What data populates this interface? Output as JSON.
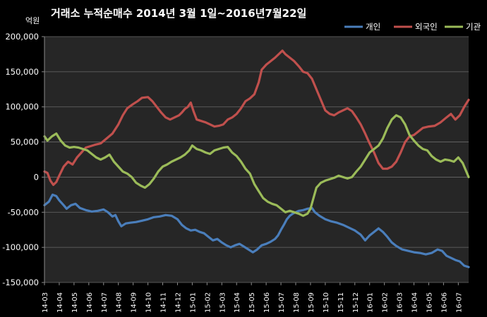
{
  "chart_data": {
    "type": "line",
    "title": "거래소  누적순매수 2014년 3월 1일~2016년7월22일",
    "unit_label": "억원",
    "ylim": [
      -150000,
      200000
    ],
    "y_ticks": [
      200000,
      150000,
      100000,
      50000,
      0,
      -50000,
      -100000,
      -150000
    ],
    "y_tick_labels": [
      "200,000",
      "150,000",
      "100,000",
      "50,000",
      "0",
      "-50,000",
      "-100,000",
      "-150,000"
    ],
    "x_labels": [
      "14-03",
      "14-04",
      "14-05",
      "14-06",
      "14-07",
      "14-08",
      "14-09",
      "14-10",
      "14-11",
      "14-12",
      "15-01",
      "15-02",
      "15-03",
      "15-04",
      "15-05",
      "15-06",
      "15-07",
      "15-08",
      "15-09",
      "15-10",
      "15-11",
      "15-12",
      "16-01",
      "16-02",
      "16-03",
      "16-04",
      "16-05",
      "16-06",
      "16-07"
    ],
    "x_range": [
      0,
      28.7
    ],
    "grid": true,
    "legend_position": "top-right",
    "series": [
      {
        "name": "개인",
        "color": "#4a7ebb",
        "points": [
          [
            0,
            -40000
          ],
          [
            0.3,
            -35000
          ],
          [
            0.55,
            -25000
          ],
          [
            0.8,
            -27000
          ],
          [
            1.0,
            -33000
          ],
          [
            1.3,
            -40000
          ],
          [
            1.5,
            -45000
          ],
          [
            1.8,
            -40000
          ],
          [
            2.1,
            -38000
          ],
          [
            2.4,
            -44000
          ],
          [
            2.8,
            -47000
          ],
          [
            3.2,
            -49000
          ],
          [
            3.6,
            -48000
          ],
          [
            4.0,
            -46000
          ],
          [
            4.3,
            -50000
          ],
          [
            4.6,
            -56000
          ],
          [
            4.8,
            -54000
          ],
          [
            5.0,
            -63000
          ],
          [
            5.2,
            -70000
          ],
          [
            5.5,
            -66000
          ],
          [
            5.8,
            -65000
          ],
          [
            6.2,
            -64000
          ],
          [
            6.6,
            -62000
          ],
          [
            7.0,
            -60000
          ],
          [
            7.4,
            -57000
          ],
          [
            7.8,
            -56000
          ],
          [
            8.2,
            -54000
          ],
          [
            8.6,
            -55000
          ],
          [
            9.0,
            -60000
          ],
          [
            9.3,
            -68000
          ],
          [
            9.6,
            -73000
          ],
          [
            9.9,
            -76000
          ],
          [
            10.2,
            -75000
          ],
          [
            10.5,
            -78000
          ],
          [
            10.8,
            -80000
          ],
          [
            11.1,
            -85000
          ],
          [
            11.4,
            -90000
          ],
          [
            11.7,
            -88000
          ],
          [
            12.0,
            -93000
          ],
          [
            12.3,
            -97000
          ],
          [
            12.6,
            -100000
          ],
          [
            12.9,
            -97000
          ],
          [
            13.2,
            -95000
          ],
          [
            13.5,
            -99000
          ],
          [
            13.8,
            -103000
          ],
          [
            14.1,
            -107000
          ],
          [
            14.4,
            -103000
          ],
          [
            14.7,
            -97000
          ],
          [
            15.0,
            -95000
          ],
          [
            15.3,
            -92000
          ],
          [
            15.6,
            -88000
          ],
          [
            15.8,
            -83000
          ],
          [
            16.0,
            -75000
          ],
          [
            16.2,
            -68000
          ],
          [
            16.4,
            -60000
          ],
          [
            16.6,
            -55000
          ],
          [
            16.8,
            -52000
          ],
          [
            17.0,
            -50000
          ],
          [
            17.2,
            -48000
          ],
          [
            17.5,
            -47000
          ],
          [
            17.8,
            -45000
          ],
          [
            18.1,
            -44000
          ],
          [
            18.3,
            -50000
          ],
          [
            18.6,
            -55000
          ],
          [
            19.0,
            -60000
          ],
          [
            19.4,
            -63000
          ],
          [
            19.8,
            -65000
          ],
          [
            20.2,
            -68000
          ],
          [
            20.6,
            -72000
          ],
          [
            21.0,
            -76000
          ],
          [
            21.4,
            -82000
          ],
          [
            21.7,
            -90000
          ],
          [
            22.0,
            -83000
          ],
          [
            22.3,
            -78000
          ],
          [
            22.6,
            -73000
          ],
          [
            22.9,
            -78000
          ],
          [
            23.2,
            -85000
          ],
          [
            23.5,
            -93000
          ],
          [
            23.8,
            -98000
          ],
          [
            24.2,
            -103000
          ],
          [
            24.6,
            -105000
          ],
          [
            25.0,
            -107000
          ],
          [
            25.4,
            -108000
          ],
          [
            25.8,
            -110000
          ],
          [
            26.2,
            -108000
          ],
          [
            26.6,
            -103000
          ],
          [
            26.9,
            -105000
          ],
          [
            27.2,
            -112000
          ],
          [
            27.5,
            -115000
          ],
          [
            27.8,
            -118000
          ],
          [
            28.1,
            -120000
          ],
          [
            28.4,
            -126000
          ],
          [
            28.7,
            -128000
          ]
        ]
      },
      {
        "name": "외국인",
        "color": "#c0504d",
        "points": [
          [
            0,
            8000
          ],
          [
            0.2,
            6000
          ],
          [
            0.4,
            -5000
          ],
          [
            0.6,
            -11000
          ],
          [
            0.8,
            -7000
          ],
          [
            1.0,
            2000
          ],
          [
            1.3,
            15000
          ],
          [
            1.6,
            22000
          ],
          [
            1.9,
            18000
          ],
          [
            2.2,
            28000
          ],
          [
            2.5,
            35000
          ],
          [
            2.8,
            42000
          ],
          [
            3.1,
            44000
          ],
          [
            3.4,
            46000
          ],
          [
            3.8,
            48000
          ],
          [
            4.2,
            55000
          ],
          [
            4.6,
            62000
          ],
          [
            5.0,
            75000
          ],
          [
            5.3,
            88000
          ],
          [
            5.6,
            98000
          ],
          [
            6.0,
            104000
          ],
          [
            6.3,
            108000
          ],
          [
            6.6,
            113000
          ],
          [
            7.0,
            114000
          ],
          [
            7.3,
            108000
          ],
          [
            7.6,
            100000
          ],
          [
            7.9,
            92000
          ],
          [
            8.2,
            85000
          ],
          [
            8.5,
            82000
          ],
          [
            8.8,
            85000
          ],
          [
            9.1,
            88000
          ],
          [
            9.3,
            92000
          ],
          [
            9.5,
            97000
          ],
          [
            9.7,
            100000
          ],
          [
            9.9,
            106000
          ],
          [
            10.1,
            93000
          ],
          [
            10.3,
            82000
          ],
          [
            10.6,
            80000
          ],
          [
            10.9,
            78000
          ],
          [
            11.2,
            75000
          ],
          [
            11.5,
            72000
          ],
          [
            11.8,
            73000
          ],
          [
            12.1,
            75000
          ],
          [
            12.4,
            82000
          ],
          [
            12.7,
            85000
          ],
          [
            13.0,
            90000
          ],
          [
            13.3,
            98000
          ],
          [
            13.6,
            108000
          ],
          [
            13.9,
            112000
          ],
          [
            14.2,
            118000
          ],
          [
            14.5,
            135000
          ],
          [
            14.7,
            153000
          ],
          [
            15.0,
            160000
          ],
          [
            15.3,
            165000
          ],
          [
            15.6,
            170000
          ],
          [
            15.9,
            176000
          ],
          [
            16.1,
            180000
          ],
          [
            16.3,
            175000
          ],
          [
            16.6,
            170000
          ],
          [
            16.9,
            165000
          ],
          [
            17.2,
            158000
          ],
          [
            17.5,
            150000
          ],
          [
            17.8,
            148000
          ],
          [
            18.1,
            140000
          ],
          [
            18.4,
            125000
          ],
          [
            18.7,
            110000
          ],
          [
            19.0,
            95000
          ],
          [
            19.3,
            90000
          ],
          [
            19.6,
            88000
          ],
          [
            19.9,
            92000
          ],
          [
            20.2,
            95000
          ],
          [
            20.5,
            98000
          ],
          [
            20.8,
            94000
          ],
          [
            21.1,
            85000
          ],
          [
            21.4,
            75000
          ],
          [
            21.7,
            62000
          ],
          [
            22.0,
            48000
          ],
          [
            22.3,
            35000
          ],
          [
            22.6,
            20000
          ],
          [
            22.9,
            12000
          ],
          [
            23.2,
            12000
          ],
          [
            23.5,
            15000
          ],
          [
            23.8,
            22000
          ],
          [
            24.1,
            35000
          ],
          [
            24.4,
            50000
          ],
          [
            24.7,
            58000
          ],
          [
            25.0,
            60000
          ],
          [
            25.3,
            65000
          ],
          [
            25.6,
            70000
          ],
          [
            26.0,
            72000
          ],
          [
            26.4,
            73000
          ],
          [
            26.8,
            78000
          ],
          [
            27.2,
            85000
          ],
          [
            27.5,
            90000
          ],
          [
            27.8,
            82000
          ],
          [
            28.1,
            88000
          ],
          [
            28.4,
            100000
          ],
          [
            28.7,
            110000
          ]
        ]
      },
      {
        "name": "기관",
        "color": "#9bbb59",
        "points": [
          [
            0,
            58000
          ],
          [
            0.2,
            52000
          ],
          [
            0.5,
            58000
          ],
          [
            0.8,
            62000
          ],
          [
            1.1,
            52000
          ],
          [
            1.4,
            45000
          ],
          [
            1.7,
            42000
          ],
          [
            2.0,
            43000
          ],
          [
            2.3,
            42000
          ],
          [
            2.6,
            40000
          ],
          [
            2.9,
            38000
          ],
          [
            3.2,
            33000
          ],
          [
            3.5,
            28000
          ],
          [
            3.8,
            25000
          ],
          [
            4.1,
            28000
          ],
          [
            4.4,
            32000
          ],
          [
            4.7,
            22000
          ],
          [
            5.0,
            15000
          ],
          [
            5.3,
            8000
          ],
          [
            5.6,
            5000
          ],
          [
            5.9,
            0
          ],
          [
            6.2,
            -8000
          ],
          [
            6.5,
            -12000
          ],
          [
            6.8,
            -15000
          ],
          [
            7.1,
            -10000
          ],
          [
            7.4,
            -2000
          ],
          [
            7.7,
            8000
          ],
          [
            8.0,
            15000
          ],
          [
            8.3,
            18000
          ],
          [
            8.6,
            22000
          ],
          [
            8.9,
            25000
          ],
          [
            9.2,
            28000
          ],
          [
            9.5,
            32000
          ],
          [
            9.8,
            38000
          ],
          [
            10.0,
            45000
          ],
          [
            10.3,
            40000
          ],
          [
            10.6,
            38000
          ],
          [
            10.9,
            35000
          ],
          [
            11.2,
            33000
          ],
          [
            11.5,
            38000
          ],
          [
            11.8,
            40000
          ],
          [
            12.1,
            42000
          ],
          [
            12.4,
            43000
          ],
          [
            12.7,
            35000
          ],
          [
            13.0,
            30000
          ],
          [
            13.3,
            22000
          ],
          [
            13.6,
            12000
          ],
          [
            13.9,
            5000
          ],
          [
            14.2,
            -10000
          ],
          [
            14.5,
            -20000
          ],
          [
            14.8,
            -30000
          ],
          [
            15.1,
            -35000
          ],
          [
            15.4,
            -38000
          ],
          [
            15.7,
            -40000
          ],
          [
            16.0,
            -45000
          ],
          [
            16.3,
            -50000
          ],
          [
            16.6,
            -48000
          ],
          [
            16.9,
            -50000
          ],
          [
            17.2,
            -52000
          ],
          [
            17.5,
            -55000
          ],
          [
            17.8,
            -52000
          ],
          [
            18.0,
            -45000
          ],
          [
            18.2,
            -30000
          ],
          [
            18.4,
            -15000
          ],
          [
            18.7,
            -8000
          ],
          [
            19.0,
            -5000
          ],
          [
            19.3,
            -3000
          ],
          [
            19.6,
            -1000
          ],
          [
            19.9,
            2000
          ],
          [
            20.2,
            0
          ],
          [
            20.5,
            -2000
          ],
          [
            20.8,
            0
          ],
          [
            21.1,
            8000
          ],
          [
            21.4,
            15000
          ],
          [
            21.7,
            25000
          ],
          [
            22.0,
            35000
          ],
          [
            22.3,
            40000
          ],
          [
            22.6,
            45000
          ],
          [
            22.9,
            55000
          ],
          [
            23.2,
            70000
          ],
          [
            23.5,
            82000
          ],
          [
            23.8,
            88000
          ],
          [
            24.1,
            85000
          ],
          [
            24.4,
            75000
          ],
          [
            24.7,
            60000
          ],
          [
            25.0,
            52000
          ],
          [
            25.3,
            45000
          ],
          [
            25.6,
            40000
          ],
          [
            25.9,
            38000
          ],
          [
            26.2,
            30000
          ],
          [
            26.5,
            25000
          ],
          [
            26.8,
            22000
          ],
          [
            27.1,
            25000
          ],
          [
            27.4,
            24000
          ],
          [
            27.7,
            22000
          ],
          [
            28.0,
            28000
          ],
          [
            28.3,
            20000
          ],
          [
            28.6,
            5000
          ],
          [
            28.7,
            0
          ]
        ]
      }
    ]
  }
}
